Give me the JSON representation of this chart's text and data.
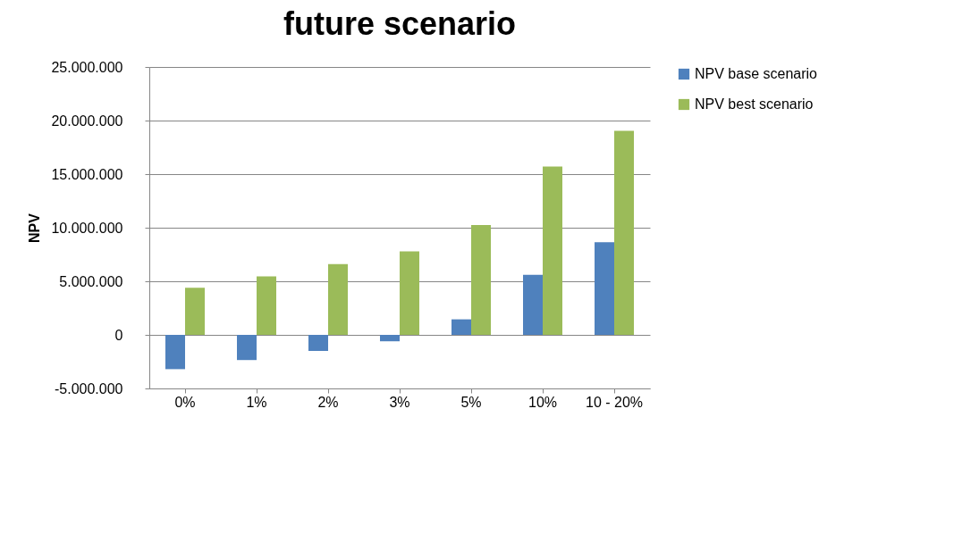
{
  "chart_data": {
    "type": "bar",
    "title": "future scenario",
    "ylabel": "NPV",
    "categories": [
      "0%",
      "1%",
      "2%",
      "3%",
      "5%",
      "10%",
      "10 - 20%"
    ],
    "series": [
      {
        "name": "NPV base scenario",
        "color": "#4f81bd",
        "values": [
          -3200000,
          -2350000,
          -1500000,
          -600000,
          1450000,
          5600000,
          8650000
        ]
      },
      {
        "name": "NPV best scenario",
        "color": "#9bbb59",
        "values": [
          4400000,
          5450000,
          6600000,
          7800000,
          10250000,
          15700000,
          19050000
        ]
      }
    ],
    "ylim": [
      -5000000,
      25000000
    ],
    "yticks": [
      {
        "value": -5000000,
        "label": "-5.000.000"
      },
      0,
      {
        "value": 5000000,
        "label": "5.000.000"
      },
      {
        "value": 10000000,
        "label": "10.000.000"
      },
      {
        "value": 15000000,
        "label": "15.000.000"
      },
      {
        "value": 20000000,
        "label": "20.000.000"
      },
      {
        "value": 25000000,
        "label": "25.000.000"
      }
    ],
    "grid": "y",
    "legend": "right"
  }
}
